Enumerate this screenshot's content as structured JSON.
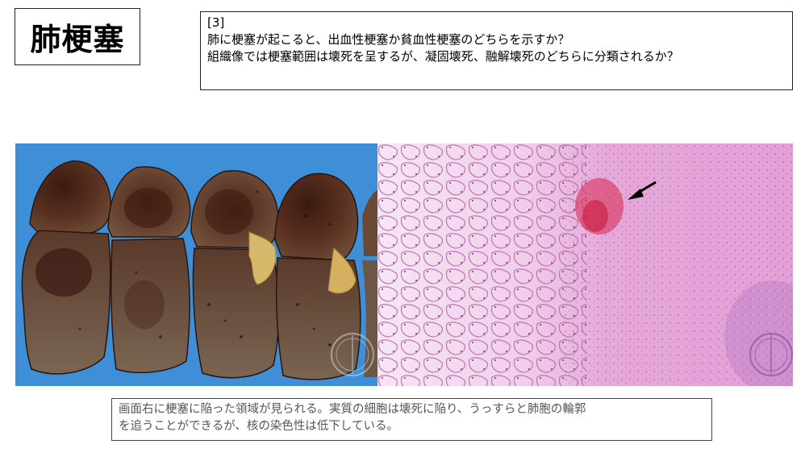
{
  "title": "肺梗塞",
  "question": {
    "number": "[3]",
    "lines": [
      "肺に梗塞が起こると、出血性梗塞か貧血性梗塞のどちらを示すか？",
      "組織像では梗塞範囲は壊死を呈するが、凝固壊死、融解壊死のどちらに分類されるか？"
    ]
  },
  "images": {
    "gross": {
      "icon": "gross-lung-slices-photo",
      "watermark_icon": "institution-seal-icon"
    },
    "histology": {
      "icon": "he-stained-lung-micrograph",
      "arrow_icon": "arrow-pointer-icon",
      "watermark_icon": "institution-seal-icon"
    }
  },
  "caption": {
    "lines": [
      "画面右に梗塞に陥った領域が見られる。実質の細胞は壊死に陥り、うっすらと肺胞の輪郭",
      "を追うことができるが、核の染色性は低下している。"
    ]
  },
  "colors": {
    "gross_background": "#3f8fd8",
    "tissue_dark": "#4a2a1c",
    "histology_pink": "#e8a6d6",
    "hemorrhage": "#d8244c"
  }
}
